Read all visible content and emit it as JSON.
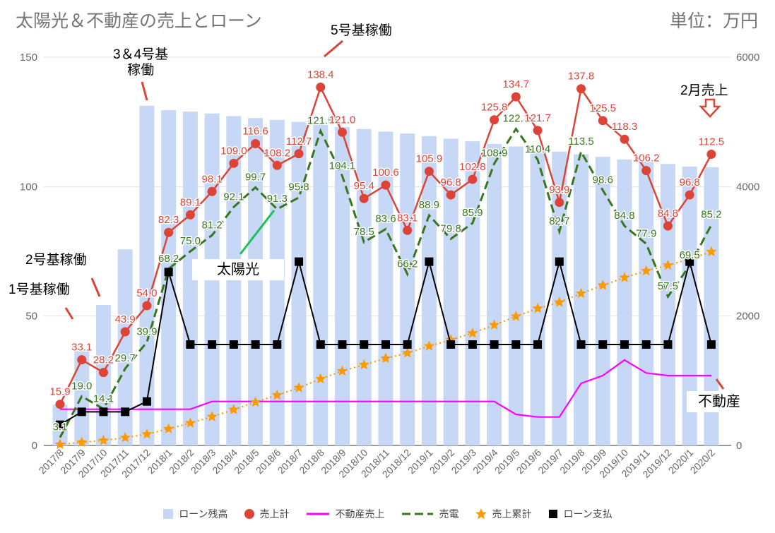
{
  "header": {
    "title": "太陽光＆不動産の売上とローン",
    "unit": "単位：万円"
  },
  "annotations": {
    "unit1": "1号基稼働",
    "unit2": "2号基稼働",
    "unit34_line1": "3＆4号基",
    "unit34_line2": "稼働",
    "unit5": "5号基稼働",
    "feb_sales": "2月売上",
    "solar_label": "太陽光",
    "realestate_label": "不動産"
  },
  "colors": {
    "loan_balance": "#c6d8f5",
    "total_sales": "#db4437",
    "realestate": "#ff00ff",
    "power": "#38761d",
    "cumulative": "#ff9900",
    "loan_payment": "#000000",
    "grid": "#e0e0e0",
    "axis_text": "#666666"
  },
  "chart_data": {
    "type": "combo",
    "categories": [
      "2017/8",
      "2017/9",
      "2017/10",
      "2017/11",
      "2017/12",
      "2018/1",
      "2018/2",
      "2018/3",
      "2018/4",
      "2018/5",
      "2018/6",
      "2018/7",
      "2018/8",
      "2018/9",
      "2018/10",
      "2018/11",
      "2018/12",
      "2019/1",
      "2019/2",
      "2019/3",
      "2019/4",
      "2019/5",
      "2019/6",
      "2019/7",
      "2019/8",
      "2019/9",
      "2019/10",
      "2019/11",
      "2019/12",
      "2020/1",
      "2020/2"
    ],
    "left_axis": {
      "min": 0,
      "max": 150,
      "ticks": [
        0,
        50,
        100,
        150
      ]
    },
    "right_axis": {
      "min": 0,
      "max": 6000,
      "ticks": [
        0,
        2000,
        4000,
        6000
      ]
    },
    "series": [
      {
        "name": "ローン残高",
        "type": "bar",
        "axis": "right",
        "values": [
          630,
          1500,
          2170,
          3030,
          5250,
          5180,
          5160,
          5130,
          5090,
          5060,
          5030,
          5000,
          4960,
          4920,
          4890,
          4850,
          4820,
          4780,
          4740,
          4700,
          4660,
          4620,
          4580,
          4540,
          4500,
          4460,
          4420,
          4390,
          4350,
          4310,
          4300
        ]
      },
      {
        "name": "売上計",
        "type": "line",
        "axis": "left",
        "values": [
          15.9,
          33.1,
          28.2,
          43.9,
          54.0,
          82.3,
          89.1,
          98.1,
          109.0,
          116.6,
          108.2,
          112.7,
          138.4,
          121.0,
          95.4,
          100.6,
          83.1,
          105.9,
          96.8,
          102.8,
          125.8,
          134.7,
          121.7,
          93.9,
          137.8,
          125.5,
          118.3,
          106.2,
          84.8,
          96.8,
          112.5
        ]
      },
      {
        "name": "不動産売上",
        "type": "line",
        "axis": "left",
        "values": [
          14,
          14,
          14,
          14,
          14,
          14,
          14,
          17,
          17,
          17,
          17,
          17,
          17,
          17,
          17,
          17,
          17,
          17,
          17,
          17,
          17,
          12,
          11,
          11,
          24,
          27,
          33,
          28,
          27,
          27,
          27
        ]
      },
      {
        "name": "売電",
        "type": "dashed",
        "axis": "left",
        "values": [
          3.1,
          19.0,
          14.1,
          29.7,
          39.9,
          68.2,
          75.0,
          81.2,
          92.1,
          99.7,
          91.3,
          95.8,
          121.5,
          104.1,
          78.5,
          83.6,
          66.2,
          88.9,
          79.8,
          85.9,
          108.9,
          122.3,
          110.4,
          82.7,
          113.5,
          98.6,
          84.8,
          77.9,
          57.5,
          69.5,
          85.2
        ]
      },
      {
        "name": "売上累計",
        "type": "dotted",
        "axis": "right",
        "values": [
          16,
          49,
          77,
          121,
          175,
          257,
          346,
          444,
          553,
          670,
          778,
          891,
          1029,
          1150,
          1246,
          1346,
          1429,
          1535,
          1632,
          1735,
          1861,
          1995,
          2117,
          2211,
          2349,
          2474,
          2593,
          2699,
          2784,
          2881,
          2993
        ]
      },
      {
        "name": "ローン支払",
        "type": "line",
        "axis": "left",
        "values": [
          8,
          13,
          13,
          13,
          17,
          67,
          39,
          39,
          39,
          39,
          39,
          71,
          39,
          39,
          39,
          39,
          39,
          71,
          39,
          39,
          39,
          39,
          39,
          71,
          39,
          39,
          39,
          39,
          39,
          71,
          39
        ]
      }
    ],
    "power_labels": [
      "3.1",
      "19.0",
      "14.1",
      "29.7",
      "39.9",
      "68.2",
      "75.0",
      "81.2",
      "92.1",
      "99.7",
      "91.3",
      "95.8",
      "121.5",
      "104.1",
      "78.5",
      "83.6",
      "66.2",
      "88.9",
      "79.8",
      "85.9",
      "108.9",
      "122.3",
      "110.4",
      "82.7",
      "113.5",
      "98.6",
      "84.8",
      "77.9",
      "57.5",
      "69.5",
      "85.2"
    ],
    "sales_labels": [
      "15.9",
      "33.1",
      "28.2",
      "43.9",
      "54.0",
      "82.3",
      "89.1",
      "98.1",
      "109.0",
      "116.6",
      "108.2",
      "112.7",
      "138.4",
      "121.0",
      "95.4",
      "100.6",
      "83.1",
      "105.9",
      "96.8",
      "102.8",
      "125.8",
      "134.7",
      "121.7",
      "93.9",
      "137.8",
      "125.5",
      "118.3",
      "106.2",
      "84.8",
      "96.8",
      "112.5"
    ],
    "legend": [
      "ローン残高",
      "売上計",
      "不動産売上",
      "売電",
      "売上累計",
      "ローン支払"
    ]
  }
}
